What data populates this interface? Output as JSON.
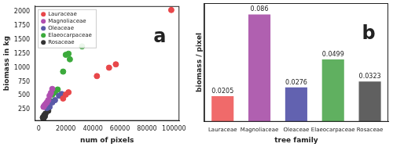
{
  "chart_data": [
    {
      "type": "scatter",
      "annotations": [
        "a"
      ],
      "x_label": "num of pixels",
      "y_label": "biomass in kg",
      "series": [
        {
          "name": "Lauraceae",
          "color": "#e8474a",
          "x": [
            98000,
            57000,
            52000,
            43000,
            22000,
            20000,
            18000
          ],
          "values": [
            2030,
            1060,
            1000,
            850,
            560,
            520,
            450
          ]
        },
        {
          "name": "Magnoliaceae",
          "color": "#b04fb0",
          "x": [
            10000,
            9000,
            8000,
            7000,
            6000,
            5000,
            4000,
            3500
          ],
          "values": [
            620,
            550,
            500,
            420,
            380,
            350,
            320,
            300
          ]
        },
        {
          "name": "Oleaceae",
          "color": "#5a5aa8",
          "x": [
            17000,
            15000,
            12000,
            10000,
            8000,
            6000
          ],
          "values": [
            530,
            500,
            420,
            380,
            300,
            280
          ]
        },
        {
          "name": "Elaeocarpaceae",
          "color": "#3caa3c",
          "x": [
            32000,
            22000,
            20000,
            23000,
            18000,
            14000,
            12000,
            10000,
            9000
          ],
          "values": [
            1380,
            1250,
            1230,
            1150,
            930,
            610,
            560,
            520,
            400
          ]
        },
        {
          "name": "Rosaceae",
          "color": "#333333",
          "x": [
            7000,
            5000,
            4000,
            3000,
            4500,
            3500
          ],
          "values": [
            230,
            180,
            150,
            110,
            130,
            90
          ]
        }
      ],
      "xlim": [
        -3000,
        104000
      ],
      "xticks": [
        0,
        20000,
        40000,
        60000,
        80000,
        100000
      ],
      "ylim": [
        50,
        2100
      ],
      "yticks": [
        250,
        500,
        750,
        1000,
        1250,
        1500,
        1750,
        2000
      ],
      "legend": "upper left",
      "grid": false,
      "marker": "circle"
    },
    {
      "type": "bar",
      "annotations": [
        "b"
      ],
      "x_label": "tree family",
      "y_label": "biomass / pixel",
      "categories": [
        "Lauraceae",
        "Magnoliaceae",
        "Oleaceae",
        "Elaeocarpaceae",
        "Rosaceae"
      ],
      "values": [
        0.0205,
        0.086,
        0.0276,
        0.0499,
        0.0323
      ],
      "colors": [
        "#f06a6a",
        "#b060b0",
        "#6262b0",
        "#60b060",
        "#606060"
      ],
      "ylim": [
        0,
        0.095
      ],
      "data_labels": true,
      "tick_labels": "x",
      "grid": false
    }
  ]
}
